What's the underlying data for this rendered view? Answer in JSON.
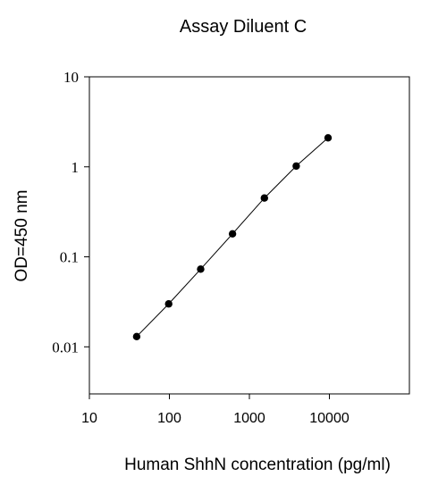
{
  "chart_data": {
    "type": "scatter",
    "title": "Assay Diluent C",
    "xlabel": "Human ShhN concentration (pg/ml)",
    "ylabel": "OD=450 nm",
    "x_scale": "log",
    "y_scale": "log",
    "xlim": [
      10,
      100000
    ],
    "ylim": [
      0.003,
      10
    ],
    "x_ticks": [
      10,
      100,
      1000,
      10000
    ],
    "x_tick_labels": [
      "10",
      "100",
      "1000",
      "10000"
    ],
    "y_ticks": [
      0.01,
      0.1,
      1,
      10
    ],
    "y_tick_labels": [
      "0.01",
      "0.1",
      "1",
      "10"
    ],
    "grid": false,
    "legend": "none",
    "series": [
      {
        "style": "markers-and-line",
        "color": "#000000",
        "x": [
          39,
          98,
          246,
          615,
          1540,
          3850,
          9625
        ],
        "y": [
          0.013,
          0.03,
          0.073,
          0.18,
          0.45,
          1.02,
          2.1
        ]
      }
    ]
  }
}
